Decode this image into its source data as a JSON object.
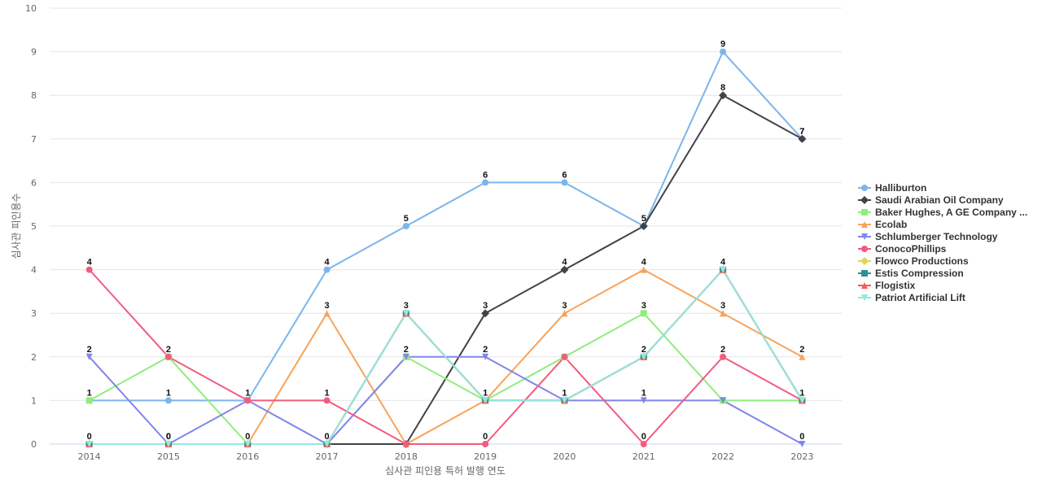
{
  "chart_data": {
    "type": "line",
    "xlabel": "심사관 피인용 특허 발행 연도",
    "ylabel": "심사관 피인용수",
    "categories": [
      "2014",
      "2015",
      "2016",
      "2017",
      "2018",
      "2019",
      "2020",
      "2021",
      "2022",
      "2023"
    ],
    "ylim": [
      0,
      10
    ],
    "yticks": [
      0,
      1,
      2,
      3,
      4,
      5,
      6,
      7,
      8,
      9,
      10
    ],
    "grid": true,
    "legend_position": "right",
    "series": [
      {
        "name": "Halliburton",
        "color": "#7cb5ec",
        "marker": "circle",
        "values": [
          1,
          1,
          1,
          4,
          5,
          6,
          6,
          5,
          9,
          7
        ],
        "labels": [
          "1",
          "1",
          "1",
          "4",
          "5",
          "6",
          "6",
          "5",
          "9",
          "7"
        ]
      },
      {
        "name": "Saudi Arabian Oil Company",
        "color": "#434348",
        "marker": "diamond",
        "values": [
          null,
          null,
          null,
          0,
          0,
          3,
          4,
          5,
          8,
          7
        ],
        "labels": [
          "",
          "",
          "",
          "",
          "",
          "3",
          "4",
          "",
          "8",
          "7"
        ]
      },
      {
        "name": "Baker Hughes, A GE Company ...",
        "color": "#90ed7d",
        "marker": "square",
        "values": [
          1,
          2,
          0,
          0,
          2,
          1,
          2,
          3,
          1,
          1
        ],
        "labels": [
          "",
          "",
          "",
          "",
          "2",
          "",
          "",
          "3",
          "",
          ""
        ]
      },
      {
        "name": "Ecolab",
        "color": "#f7a35c",
        "marker": "triangle",
        "values": [
          null,
          null,
          0,
          3,
          0,
          1,
          3,
          4,
          3,
          2
        ],
        "labels": [
          "",
          "",
          "",
          "3",
          "",
          "",
          "3",
          "4",
          "3",
          "2"
        ]
      },
      {
        "name": "Schlumberger Technology",
        "color": "#8085e9",
        "marker": "triangle-down",
        "values": [
          2,
          0,
          1,
          0,
          2,
          2,
          1,
          1,
          1,
          0
        ],
        "labels": [
          "2",
          "0",
          "",
          "",
          "",
          "2",
          "",
          "1",
          "",
          "0"
        ]
      },
      {
        "name": "ConocoPhillips",
        "color": "#f15c80",
        "marker": "circle",
        "values": [
          4,
          2,
          1,
          1,
          0,
          0,
          2,
          0,
          2,
          1
        ],
        "labels": [
          "4",
          "2",
          "",
          "1",
          "",
          "0",
          "",
          "0",
          "2",
          ""
        ]
      },
      {
        "name": "Flowco Productions",
        "color": "#e4d354",
        "marker": "diamond",
        "values": [
          0,
          0,
          0,
          0,
          3,
          1,
          1,
          2,
          4,
          1
        ],
        "labels": [
          "",
          "",
          "",
          "",
          "",
          "",
          "",
          "",
          "",
          ""
        ]
      },
      {
        "name": "Estis Compression",
        "color": "#2b908f",
        "marker": "square",
        "values": [
          0,
          0,
          0,
          0,
          3,
          1,
          1,
          2,
          4,
          1
        ],
        "labels": [
          "",
          "",
          "",
          "",
          "",
          "",
          "",
          "",
          "",
          ""
        ]
      },
      {
        "name": "Flogistix",
        "color": "#f45b5b",
        "marker": "triangle",
        "values": [
          0,
          0,
          0,
          0,
          3,
          1,
          1,
          2,
          4,
          1
        ],
        "labels": [
          "",
          "",
          "",
          "",
          "",
          "",
          "",
          "",
          "",
          ""
        ]
      },
      {
        "name": "Patriot Artificial Lift",
        "color": "#91e8e1",
        "marker": "triangle-down",
        "values": [
          0,
          0,
          0,
          0,
          3,
          1,
          1,
          2,
          4,
          1
        ],
        "labels": [
          "0",
          "0",
          "0",
          "0",
          "3",
          "1",
          "1",
          "2",
          "4",
          "1"
        ]
      }
    ]
  }
}
